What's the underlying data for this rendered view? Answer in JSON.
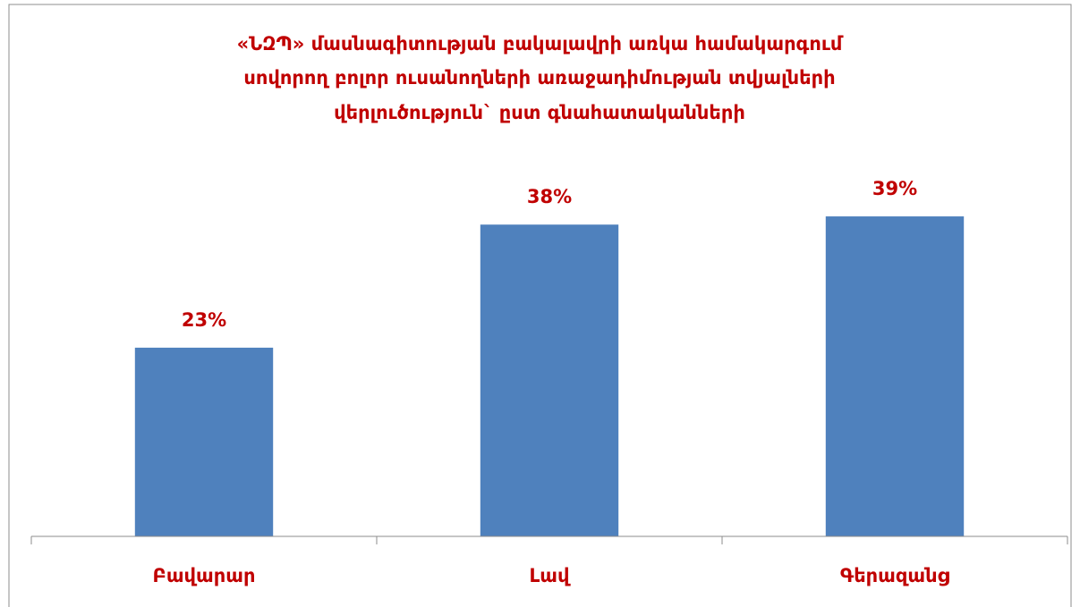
{
  "chart_data": {
    "type": "bar",
    "title": [
      "«ՆԶՊ» մասնագիտության բակալավրի առկա համակարգում",
      "սովորող բոլոր ուսանողների  առաջադիմության տվյալների",
      "վերլուծություն` ըստ գնահատականների"
    ],
    "categories": [
      "Բավարար",
      "Լավ",
      "Գերազանց"
    ],
    "values": [
      23,
      38,
      39
    ],
    "value_labels": [
      "23%",
      "38%",
      "39%"
    ],
    "color": "#4f81bd",
    "ylim": [
      0,
      45
    ]
  }
}
